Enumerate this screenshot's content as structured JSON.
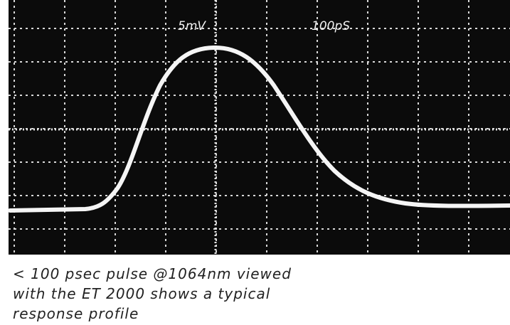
{
  "scope": {
    "volts_per_div": "5mV",
    "time_per_div": "100pS"
  },
  "caption": {
    "lines": [
      "< 100 psec pulse @1064nm viewed",
      "with the ET 2000 shows a typical",
      "response profile"
    ]
  }
}
